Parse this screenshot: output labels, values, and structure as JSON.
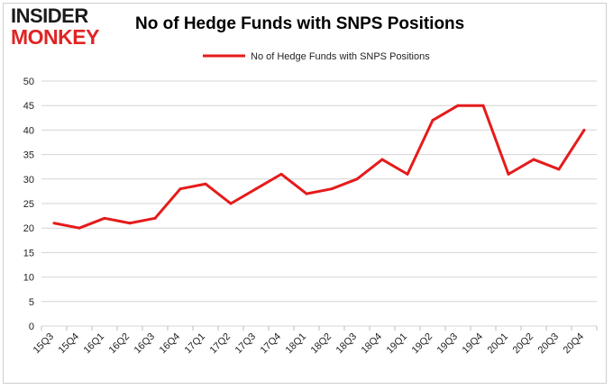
{
  "logo": {
    "line1": "INSIDER",
    "line2": "MONKEY",
    "colors": {
      "dark": "#1b1b1b",
      "red": "#e02424"
    }
  },
  "chart_data": {
    "type": "line",
    "title": "No of Hedge Funds with SNPS Positions",
    "xlabel": "",
    "ylabel": "",
    "categories": [
      "15Q3",
      "15Q4",
      "16Q1",
      "16Q2",
      "16Q3",
      "16Q4",
      "17Q1",
      "17Q2",
      "17Q3",
      "17Q4",
      "18Q1",
      "18Q2",
      "18Q3",
      "18Q4",
      "19Q1",
      "19Q2",
      "19Q3",
      "19Q4",
      "20Q1",
      "20Q2",
      "20Q3",
      "20Q4"
    ],
    "series": [
      {
        "name": "No of Hedge Funds with SNPS Positions",
        "color": "#e51b1b",
        "values": [
          21,
          20,
          22,
          21,
          22,
          28,
          29,
          25,
          28,
          31,
          27,
          28,
          30,
          34,
          31,
          42,
          45,
          45,
          31,
          34,
          32,
          40
        ]
      }
    ],
    "ylim": [
      0,
      50
    ],
    "yticks": [
      0,
      5,
      10,
      15,
      20,
      25,
      30,
      35,
      40,
      45,
      50
    ],
    "grid": true,
    "legend_position": "top-center"
  }
}
